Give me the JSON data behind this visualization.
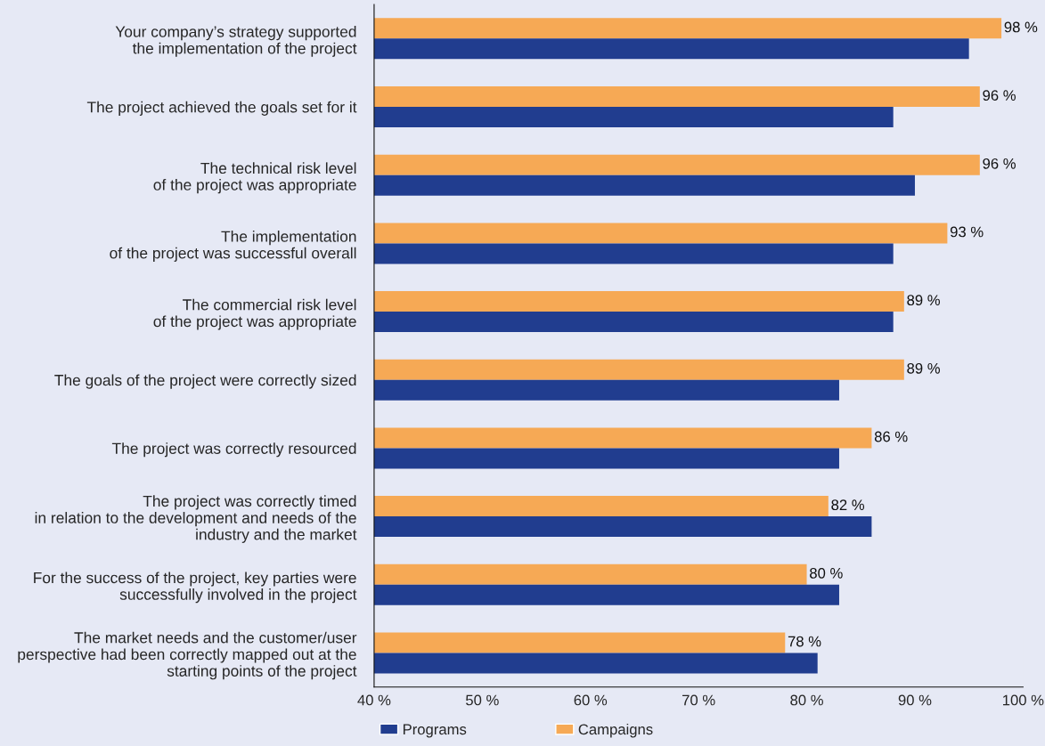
{
  "chart_data": {
    "type": "bar",
    "orientation": "horizontal",
    "categories": [
      "Your company’s strategy supported\nthe implementation of the project",
      "The project achieved the goals set for it",
      "The technical risk level\nof the project was appropriate",
      "The implementation\nof the project was successful overall",
      "The commercial risk level\nof the project was appropriate",
      "The goals of the project were correctly sized",
      "The project was correctly resourced",
      "The project was correctly timed\nin relation to the development and needs of the\nindustry and the market",
      "For the success of the project, key parties were\nsuccessfully involved in the project",
      "The market needs and the customer/user\nperspective had been correctly mapped out at the\nstarting points of the project"
    ],
    "series": [
      {
        "name": "Campaigns",
        "color": "#f6a955",
        "values": [
          98,
          96,
          96,
          93,
          89,
          89,
          86,
          82,
          80,
          78
        ],
        "value_labels": [
          "98 %",
          "96 %",
          "96 %",
          "93 %",
          "89 %",
          "89 %",
          "86 %",
          "82 %",
          "80 %",
          "78 %"
        ]
      },
      {
        "name": "Programs",
        "color": "#213d8f",
        "values": [
          95,
          88,
          90,
          88,
          88,
          83,
          83,
          86,
          83,
          81
        ]
      }
    ],
    "xlim": [
      40,
      100
    ],
    "xticks": [
      {
        "value": 40,
        "label": "40 %"
      },
      {
        "value": 50,
        "label": "50 %"
      },
      {
        "value": 60,
        "label": "60 %"
      },
      {
        "value": 70,
        "label": "70 %"
      },
      {
        "value": 80,
        "label": "80 %"
      },
      {
        "value": 90,
        "label": "90 %"
      },
      {
        "value": 100,
        "label": "100 %"
      }
    ],
    "grid": false,
    "legend": "bottom left"
  }
}
